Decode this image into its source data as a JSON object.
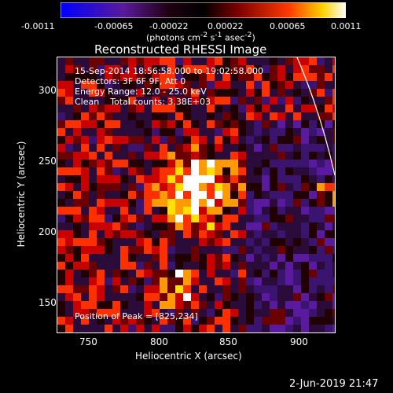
{
  "colorbar": {
    "ticks": [
      "-0.0011",
      "-0.00065",
      "-0.00022",
      "0.00022",
      "0.00065",
      "0.0011"
    ],
    "unit_html": "(photons cm<sup>-2</sup> s<sup>-1</sup> asec<sup>-2</sup>)"
  },
  "title": "Reconstructed RHESSI Image",
  "annotations": {
    "time_range": "15-Sep-2014 18:56:58.000 to 19:02:58.000",
    "detectors": "Detectors: 3F 6F 9F, Att 0",
    "energy": "Energy Range: 12.0 - 25.0 keV",
    "clean_total": "Clean    Total counts: 3.38E+03",
    "peak": "Position of Peak = [825,234]"
  },
  "axes": {
    "x_label": "Heliocentric X (arcsec)",
    "y_label": "Heliocentric Y (arcsec)",
    "x_ticks": [
      "750",
      "800",
      "850",
      "900"
    ],
    "y_ticks": [
      "300",
      "250",
      "200",
      "150"
    ]
  },
  "footer": {
    "date": "2-Jun-2019 21:47"
  }
}
